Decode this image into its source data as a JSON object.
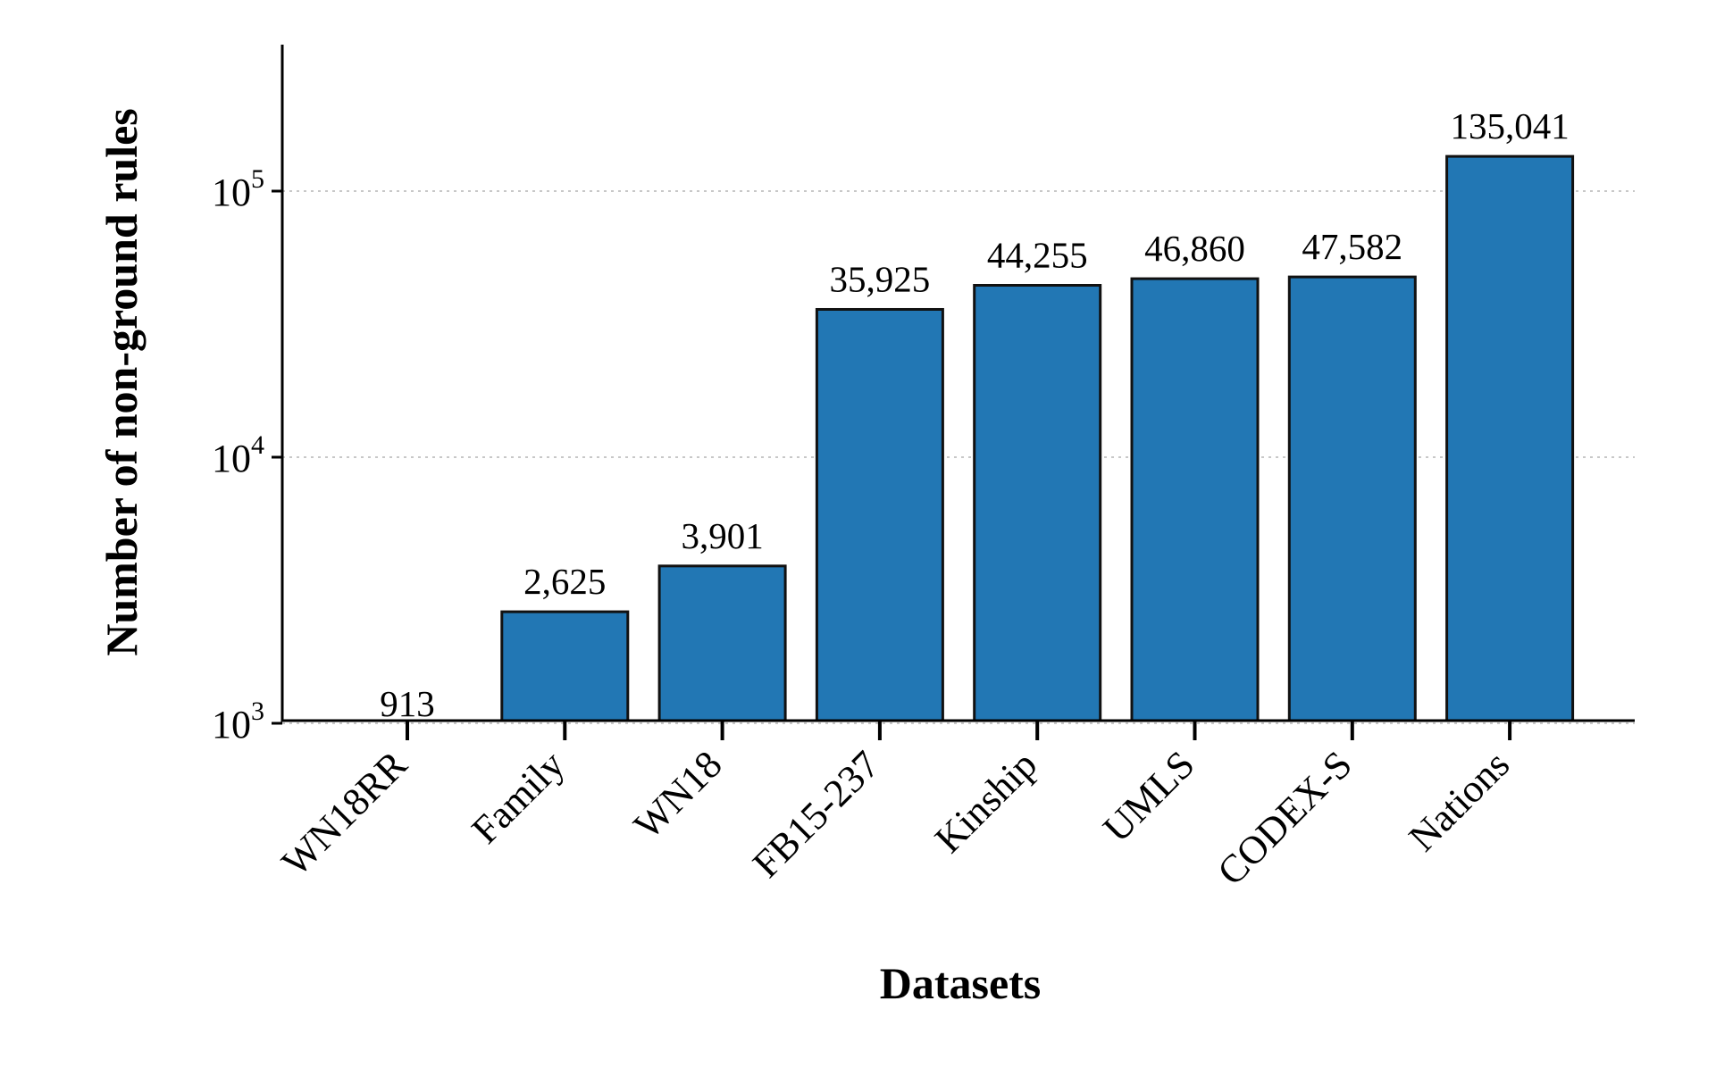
{
  "chart_data": {
    "type": "bar",
    "title": "",
    "xlabel": "Datasets",
    "ylabel": "Number of non-ground rules",
    "yscale": "log",
    "ylim": [
      500,
      180000
    ],
    "yticks": [
      {
        "value": 1000,
        "base": "10",
        "exp": "3"
      },
      {
        "value": 10000,
        "base": "10",
        "exp": "4"
      },
      {
        "value": 100000,
        "base": "10",
        "exp": "5"
      }
    ],
    "grid": "horizontal dotted",
    "categories": [
      "WN18RR",
      "Family",
      "WN18",
      "FB15-237",
      "Kinship",
      "UMLS",
      "CODEX-S",
      "Nations"
    ],
    "values": [
      913,
      2625,
      3901,
      35925,
      44255,
      46860,
      47582,
      135041
    ],
    "value_labels": [
      "913",
      "2,625",
      "3,901",
      "35,925",
      "44,255",
      "46,860",
      "47,582",
      "135,041"
    ],
    "bar_color": "#2277b4",
    "bar_edge_color": "#111111"
  }
}
